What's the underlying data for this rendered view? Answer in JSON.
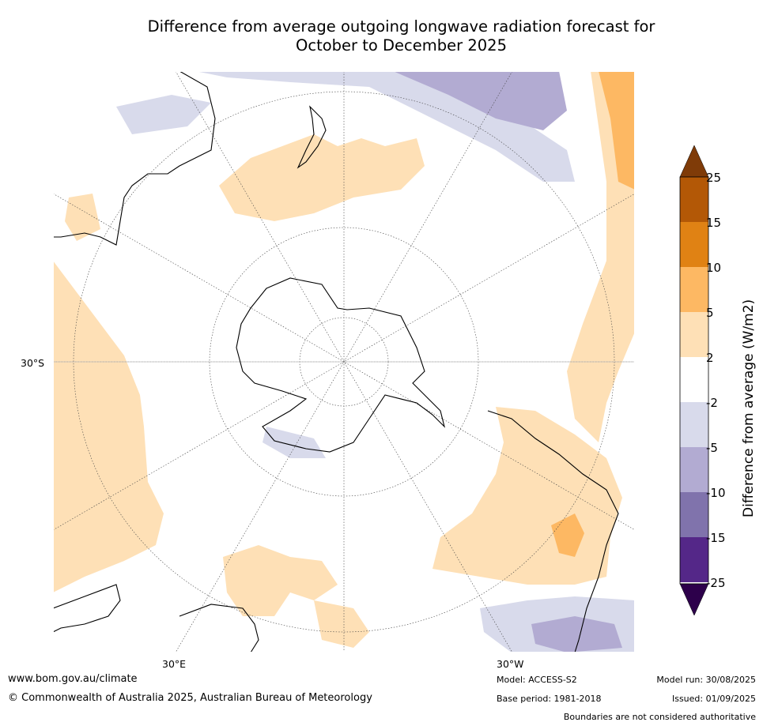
{
  "title_line1": "Difference from average outgoing longwave radiation forecast for",
  "title_line2": "October to December 2025",
  "map": {
    "projection": "south polar stereographic",
    "lat_label": "30°S",
    "lon_labels": [
      "30°E",
      "30°W"
    ]
  },
  "colorbar": {
    "label": "Difference from average (W/m2)",
    "ticks": [
      "25",
      "15",
      "10",
      "5",
      "2",
      "-2",
      "-5",
      "-10",
      "-15",
      "-25"
    ],
    "colors_top_to_bottom": [
      "#7f3b08",
      "#b35806",
      "#e08214",
      "#fdb863",
      "#fee0b6",
      "#ffffff",
      "#d8daeb",
      "#b2abd2",
      "#8073ac",
      "#542788",
      "#2d004b"
    ]
  },
  "footer": {
    "url": "www.bom.gov.au/climate",
    "copyright": "© Commonwealth of Australia 2025, Australian Bureau of Meteorology",
    "model": "Model: ACCESS-S2",
    "base_period": "Base period: 1981-2018",
    "model_run": "Model run: 30/08/2025",
    "issued": "Issued: 01/09/2025",
    "disclaimer": "Boundaries are not considered authoritative"
  }
}
